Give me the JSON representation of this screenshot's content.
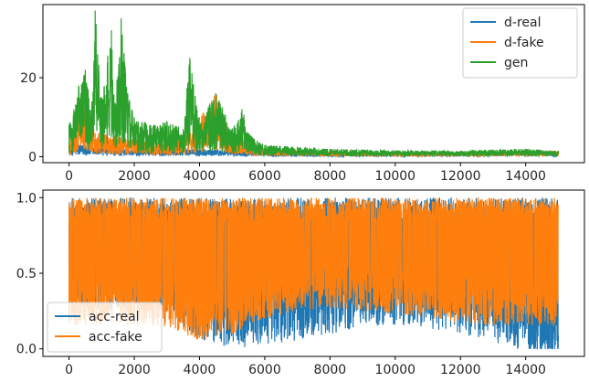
{
  "chart_data": [
    {
      "type": "line",
      "title": "",
      "xlabel": "",
      "ylabel": "",
      "xlim": [
        -800,
        15800
      ],
      "ylim": [
        -1.5,
        38.5
      ],
      "xticks": [
        0,
        2000,
        4000,
        6000,
        8000,
        10000,
        12000,
        14000
      ],
      "yticks": [
        0,
        20
      ],
      "legend_position": "top-right",
      "grid": false,
      "series": [
        {
          "name": "d-real",
          "color": "#1f77b4",
          "x": [
            0,
            300,
            800,
            1500,
            2500,
            3500,
            4500,
            5500,
            6000,
            7000,
            8000,
            9000,
            10000,
            11000,
            12000,
            13000,
            14000,
            14500,
            15000
          ],
          "y": [
            2.5,
            3,
            2.5,
            2,
            2,
            2,
            1.8,
            1.5,
            1.2,
            1,
            0.8,
            0.8,
            0.8,
            0.8,
            0.9,
            1,
            1.2,
            1.5,
            0.6
          ]
        },
        {
          "name": "d-fake",
          "color": "#ff7f0e",
          "x": [
            0,
            200,
            400,
            800,
            1500,
            2500,
            3500,
            4000,
            4500,
            5000,
            6000,
            7000,
            8000,
            9000,
            10000,
            11000,
            12000,
            13000,
            14000,
            15000
          ],
          "y": [
            4,
            8,
            17,
            6,
            5,
            4,
            4.5,
            10,
            16,
            5,
            2,
            1.5,
            1.2,
            1.2,
            1,
            1,
            1.2,
            1.2,
            1.3,
            1.5
          ]
        },
        {
          "name": "gen",
          "color": "#2ca02c",
          "x": [
            0,
            150,
            300,
            500,
            700,
            800,
            1000,
            1300,
            1400,
            1600,
            1800,
            2000,
            2500,
            3000,
            3500,
            3700,
            4000,
            4300,
            4500,
            5000,
            5300,
            5600,
            6000,
            7000,
            8000,
            9000,
            10000,
            11000,
            12000,
            13000,
            14000,
            15000
          ],
          "y": [
            8,
            12,
            18,
            22,
            14,
            37,
            15,
            32,
            12,
            35,
            16,
            10,
            8,
            9,
            7,
            25,
            8,
            13,
            16,
            7,
            12,
            5,
            3,
            2.5,
            2,
            1.8,
            1.6,
            1.5,
            1.5,
            1.8,
            2,
            1.5
          ]
        }
      ]
    },
    {
      "type": "line",
      "title": "",
      "xlabel": "",
      "ylabel": "",
      "xlim": [
        -800,
        15800
      ],
      "ylim": [
        -0.05,
        1.05
      ],
      "xticks": [
        0,
        2000,
        4000,
        6000,
        8000,
        10000,
        12000,
        14000
      ],
      "yticks": [
        0.0,
        0.5,
        1.0
      ],
      "yticklabels": [
        "0.0",
        "0.5",
        "1.0"
      ],
      "legend_position": "bottom-left",
      "grid": false,
      "series": [
        {
          "name": "acc-real",
          "color": "#1f77b4",
          "x": [
            0,
            1000,
            2000,
            3000,
            4000,
            5000,
            6000,
            7000,
            8000,
            9000,
            10000,
            11000,
            12000,
            13000,
            14000,
            15000
          ],
          "y": [
            0.5,
            0.5,
            0.5,
            0.5,
            0.3,
            0.25,
            0.28,
            0.3,
            0.35,
            0.38,
            0.4,
            0.38,
            0.35,
            0.3,
            0.2,
            0.15
          ]
        },
        {
          "name": "acc-fake",
          "color": "#ff7f0e",
          "x": [
            0,
            1000,
            2000,
            3000,
            4000,
            5000,
            6000,
            7000,
            8000,
            9000,
            10000,
            11000,
            12000,
            13000,
            14000,
            15000
          ],
          "y": [
            0.5,
            0.5,
            0.5,
            0.5,
            0.4,
            0.45,
            0.55,
            0.6,
            0.62,
            0.6,
            0.58,
            0.55,
            0.52,
            0.5,
            0.5,
            0.5
          ]
        }
      ]
    }
  ]
}
